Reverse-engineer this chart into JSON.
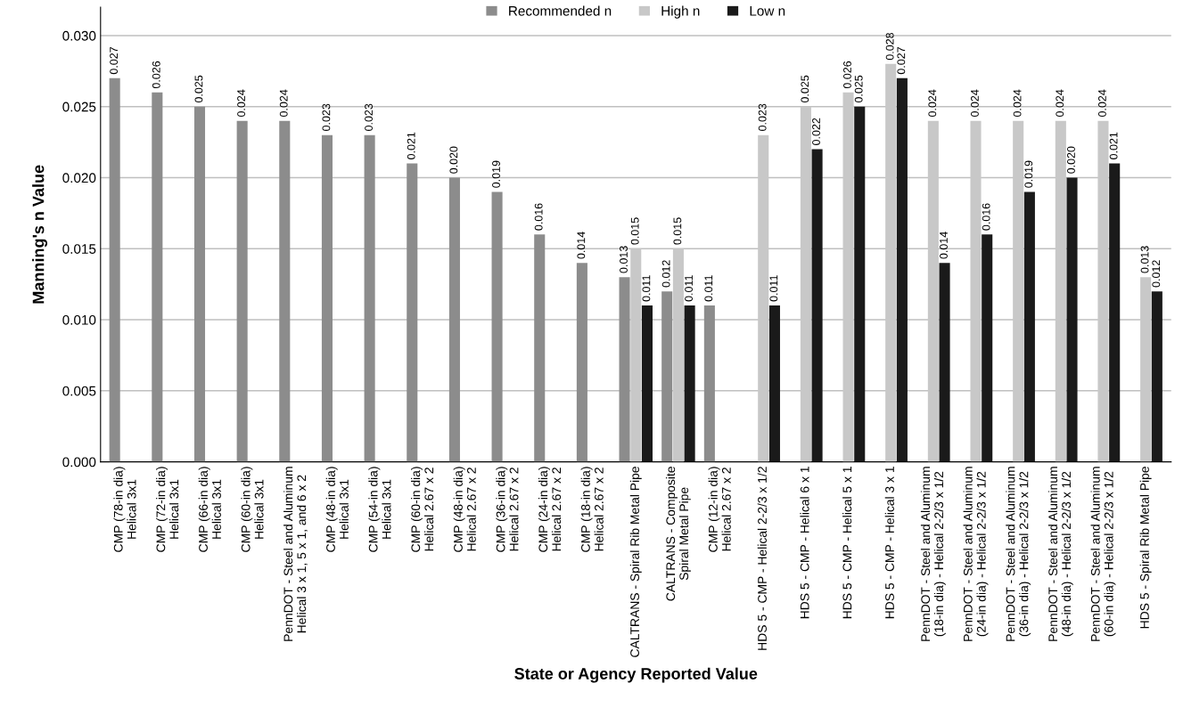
{
  "chart_data": {
    "type": "bar",
    "xlabel": "State or Agency Reported Value",
    "ylabel": "Manning's n Value",
    "categories": [
      "CMP (78-in dia)\nHelical 3x1",
      "CMP (72-in dia)\nHelical 3x1",
      "CMP (66-in dia)\nHelical 3x1",
      "CMP (60-in dia)\nHelical 3x1",
      "PennDOT - Steel and Aluminum\nHelical 3 x 1, 5 x 1, and 6 x 2",
      "CMP (48-in dia)\nHelical 3x1",
      "CMP (54-in dia)\nHelical 3x1",
      "CMP (60-in dia)\nHelical 2.67 x 2",
      "CMP (48-in dia)\nHelical 2.67 x 2",
      "CMP (36-in dia)\nHelical 2.67 x 2",
      "CMP (24-in dia)\nHelical 2.67 x 2",
      "CMP (18-in dia)\nHelical 2.67 x 2",
      "CALTRANS - Spiral Rib Metal Pipe",
      "CALTRANS - Composite\nSpiral Metal Pipe",
      "CMP (12-in dia)\nHelical 2.67 x 2",
      "HDS 5 - CMP - Helical 2-2/3 x 1/2",
      "HDS 5 - CMP - Helical 6 x 1",
      "HDS 5 - CMP - Helical 5 x 1",
      "HDS 5 - CMP - Helical 3 x 1",
      "PennDOT - Steel and Aluminum\n(18-in dia) - Helical 2-2/3 x 1/2",
      "PennDOT - Steel and Aluminum\n(24-in dia) - Helical 2-2/3 x 1/2",
      "PennDOT - Steel and Aluminum\n(36-in dia) - Helical 2-2/3 x 1/2",
      "PennDOT - Steel and Aluminum\n(48-in dia) - Helical 2-2/3 x 1/2",
      "PennDOT - Steel and Aluminum\n(60-in dia) - Helical 2-2/3 x 1/2",
      "HDS 5 - Spiral Rib Metal Pipe"
    ],
    "series": [
      {
        "name": "Recommended n",
        "color": "#8c8c8c",
        "values": [
          0.027,
          0.026,
          0.025,
          0.024,
          0.024,
          0.023,
          0.023,
          0.021,
          0.02,
          0.019,
          0.016,
          0.014,
          0.013,
          0.012,
          0.011,
          null,
          null,
          null,
          null,
          null,
          null,
          null,
          null,
          null,
          null
        ],
        "value_labels": [
          "0.027",
          "0.026",
          "0.025",
          "0.024",
          "0.024",
          "0.023",
          "0.023",
          "0.021",
          "0.020",
          "0.019",
          "0.016",
          "0.014",
          "0.013",
          "0.012",
          "0.011",
          null,
          null,
          null,
          null,
          null,
          null,
          null,
          null,
          null,
          null
        ]
      },
      {
        "name": "High n",
        "color": "#c8c8c8",
        "values": [
          null,
          null,
          null,
          null,
          null,
          null,
          null,
          null,
          null,
          null,
          null,
          null,
          0.015,
          0.015,
          null,
          0.023,
          0.025,
          0.026,
          0.028,
          0.024,
          0.024,
          0.024,
          0.024,
          0.024,
          0.013
        ],
        "value_labels": [
          null,
          null,
          null,
          null,
          null,
          null,
          null,
          null,
          null,
          null,
          null,
          null,
          "0.015",
          "0.015",
          null,
          "0.023",
          "0.025",
          "0.026",
          "0.028",
          "0.024",
          "0.024",
          "0.024",
          "0.024",
          "0.024",
          "0.013"
        ]
      },
      {
        "name": "Low n",
        "color": "#1a1a1a",
        "values": [
          null,
          null,
          null,
          null,
          null,
          null,
          null,
          null,
          null,
          null,
          null,
          null,
          0.011,
          0.011,
          null,
          0.011,
          0.022,
          0.025,
          0.027,
          0.014,
          0.016,
          0.019,
          0.02,
          0.021,
          0.012
        ],
        "value_labels": [
          null,
          null,
          null,
          null,
          null,
          null,
          null,
          null,
          null,
          null,
          null,
          null,
          "0.011",
          "0.011",
          null,
          "0.011",
          "0.022",
          "0.025",
          "0.027",
          "0.014",
          "0.016",
          "0.019",
          "0.020",
          "0.021",
          "0.012"
        ]
      }
    ],
    "ylim": [
      0,
      0.032
    ],
    "yticks": [
      {
        "value": 0,
        "label": "0.000"
      },
      0.005,
      {
        "value": 0.01,
        "label": "0.010"
      },
      0.015,
      {
        "value": 0.02,
        "label": "0.020"
      },
      0.025,
      {
        "value": 0.03,
        "label": "0.030"
      }
    ],
    "grid": "y",
    "legend": "top"
  }
}
